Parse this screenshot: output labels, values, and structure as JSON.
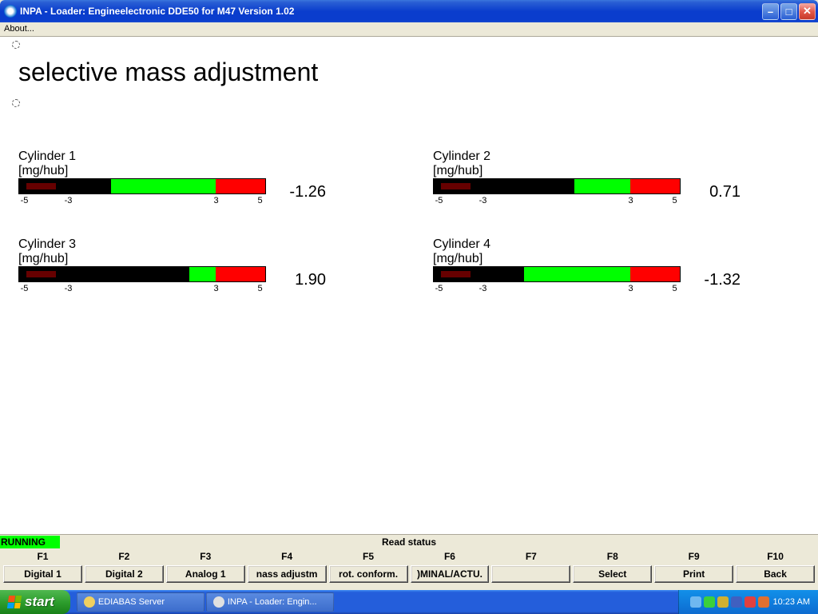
{
  "window": {
    "title": "INPA - Loader:  Engineelectronic DDE50 for M47 Version 1.02"
  },
  "menu": {
    "about": "About..."
  },
  "page": {
    "heading": "selective mass adjustment"
  },
  "gauge": {
    "min": -5,
    "max": 5,
    "redzone_lo": -5,
    "redzone_hi": 5,
    "greenzone_lo": -3,
    "greenzone_hi": 3,
    "ticks": [
      "-5",
      "-3",
      "3",
      "5"
    ],
    "colors": {
      "red": "#ff0000",
      "green": "#00ff00",
      "black": "#000000",
      "border": "#000000"
    }
  },
  "cylinders": [
    {
      "name": "Cylinder 1",
      "unit": "[mg/hub]",
      "value": "-1.26",
      "num": -1.26
    },
    {
      "name": "Cylinder 2",
      "unit": "[mg/hub]",
      "value": "0.71",
      "num": 0.71
    },
    {
      "name": "Cylinder 3",
      "unit": "[mg/hub]",
      "value": "1.90",
      "num": 1.9
    },
    {
      "name": "Cylinder 4",
      "unit": "[mg/hub]",
      "value": "-1.32",
      "num": -1.32
    }
  ],
  "status": {
    "running": "RUNNING",
    "read": "Read status"
  },
  "fkeys": [
    "F1",
    "F2",
    "F3",
    "F4",
    "F5",
    "F6",
    "F7",
    "F8",
    "F9",
    "F10"
  ],
  "fbuttons": [
    "Digital 1",
    "Digital 2",
    "Analog 1",
    "nass adjustm",
    "rot. conform.",
    ")MINAL/ACTU.",
    "",
    "Select",
    "Print",
    "Back"
  ],
  "taskbar": {
    "start": "start",
    "items": [
      {
        "label": "EDIABAS Server",
        "iconColor": "#f0d060"
      },
      {
        "label": "INPA - Loader:  Engin...",
        "iconColor": "#e0e0e0"
      }
    ],
    "tray_icons": [
      "#6fb8f0",
      "#3bd03b",
      "#d0b030",
      "#4060c0",
      "#e04040",
      "#e07030"
    ],
    "clock": "10:23 AM"
  }
}
